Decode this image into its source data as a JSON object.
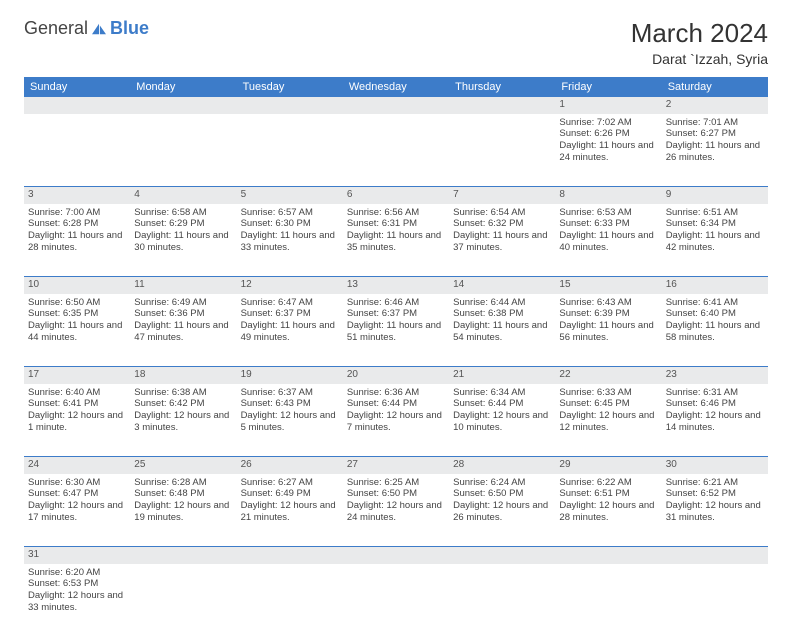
{
  "brand": {
    "part1": "General",
    "part2": "Blue"
  },
  "title": "March 2024",
  "location": "Darat `Izzah, Syria",
  "colors": {
    "header_bg": "#3d7cc9",
    "header_text": "#ffffff",
    "daynum_bg": "#e9eaeb",
    "border": "#3d7cc9",
    "text": "#444444",
    "background": "#ffffff"
  },
  "layout": {
    "cell_font_size": 9.5,
    "header_font_size": 11,
    "title_font_size": 26,
    "location_font_size": 14
  },
  "days": [
    "Sunday",
    "Monday",
    "Tuesday",
    "Wednesday",
    "Thursday",
    "Friday",
    "Saturday"
  ],
  "weeks": [
    [
      null,
      null,
      null,
      null,
      null,
      {
        "n": "1",
        "sr": "Sunrise: 7:02 AM",
        "ss": "Sunset: 6:26 PM",
        "dl": "Daylight: 11 hours and 24 minutes."
      },
      {
        "n": "2",
        "sr": "Sunrise: 7:01 AM",
        "ss": "Sunset: 6:27 PM",
        "dl": "Daylight: 11 hours and 26 minutes."
      }
    ],
    [
      {
        "n": "3",
        "sr": "Sunrise: 7:00 AM",
        "ss": "Sunset: 6:28 PM",
        "dl": "Daylight: 11 hours and 28 minutes."
      },
      {
        "n": "4",
        "sr": "Sunrise: 6:58 AM",
        "ss": "Sunset: 6:29 PM",
        "dl": "Daylight: 11 hours and 30 minutes."
      },
      {
        "n": "5",
        "sr": "Sunrise: 6:57 AM",
        "ss": "Sunset: 6:30 PM",
        "dl": "Daylight: 11 hours and 33 minutes."
      },
      {
        "n": "6",
        "sr": "Sunrise: 6:56 AM",
        "ss": "Sunset: 6:31 PM",
        "dl": "Daylight: 11 hours and 35 minutes."
      },
      {
        "n": "7",
        "sr": "Sunrise: 6:54 AM",
        "ss": "Sunset: 6:32 PM",
        "dl": "Daylight: 11 hours and 37 minutes."
      },
      {
        "n": "8",
        "sr": "Sunrise: 6:53 AM",
        "ss": "Sunset: 6:33 PM",
        "dl": "Daylight: 11 hours and 40 minutes."
      },
      {
        "n": "9",
        "sr": "Sunrise: 6:51 AM",
        "ss": "Sunset: 6:34 PM",
        "dl": "Daylight: 11 hours and 42 minutes."
      }
    ],
    [
      {
        "n": "10",
        "sr": "Sunrise: 6:50 AM",
        "ss": "Sunset: 6:35 PM",
        "dl": "Daylight: 11 hours and 44 minutes."
      },
      {
        "n": "11",
        "sr": "Sunrise: 6:49 AM",
        "ss": "Sunset: 6:36 PM",
        "dl": "Daylight: 11 hours and 47 minutes."
      },
      {
        "n": "12",
        "sr": "Sunrise: 6:47 AM",
        "ss": "Sunset: 6:37 PM",
        "dl": "Daylight: 11 hours and 49 minutes."
      },
      {
        "n": "13",
        "sr": "Sunrise: 6:46 AM",
        "ss": "Sunset: 6:37 PM",
        "dl": "Daylight: 11 hours and 51 minutes."
      },
      {
        "n": "14",
        "sr": "Sunrise: 6:44 AM",
        "ss": "Sunset: 6:38 PM",
        "dl": "Daylight: 11 hours and 54 minutes."
      },
      {
        "n": "15",
        "sr": "Sunrise: 6:43 AM",
        "ss": "Sunset: 6:39 PM",
        "dl": "Daylight: 11 hours and 56 minutes."
      },
      {
        "n": "16",
        "sr": "Sunrise: 6:41 AM",
        "ss": "Sunset: 6:40 PM",
        "dl": "Daylight: 11 hours and 58 minutes."
      }
    ],
    [
      {
        "n": "17",
        "sr": "Sunrise: 6:40 AM",
        "ss": "Sunset: 6:41 PM",
        "dl": "Daylight: 12 hours and 1 minute."
      },
      {
        "n": "18",
        "sr": "Sunrise: 6:38 AM",
        "ss": "Sunset: 6:42 PM",
        "dl": "Daylight: 12 hours and 3 minutes."
      },
      {
        "n": "19",
        "sr": "Sunrise: 6:37 AM",
        "ss": "Sunset: 6:43 PM",
        "dl": "Daylight: 12 hours and 5 minutes."
      },
      {
        "n": "20",
        "sr": "Sunrise: 6:36 AM",
        "ss": "Sunset: 6:44 PM",
        "dl": "Daylight: 12 hours and 7 minutes."
      },
      {
        "n": "21",
        "sr": "Sunrise: 6:34 AM",
        "ss": "Sunset: 6:44 PM",
        "dl": "Daylight: 12 hours and 10 minutes."
      },
      {
        "n": "22",
        "sr": "Sunrise: 6:33 AM",
        "ss": "Sunset: 6:45 PM",
        "dl": "Daylight: 12 hours and 12 minutes."
      },
      {
        "n": "23",
        "sr": "Sunrise: 6:31 AM",
        "ss": "Sunset: 6:46 PM",
        "dl": "Daylight: 12 hours and 14 minutes."
      }
    ],
    [
      {
        "n": "24",
        "sr": "Sunrise: 6:30 AM",
        "ss": "Sunset: 6:47 PM",
        "dl": "Daylight: 12 hours and 17 minutes."
      },
      {
        "n": "25",
        "sr": "Sunrise: 6:28 AM",
        "ss": "Sunset: 6:48 PM",
        "dl": "Daylight: 12 hours and 19 minutes."
      },
      {
        "n": "26",
        "sr": "Sunrise: 6:27 AM",
        "ss": "Sunset: 6:49 PM",
        "dl": "Daylight: 12 hours and 21 minutes."
      },
      {
        "n": "27",
        "sr": "Sunrise: 6:25 AM",
        "ss": "Sunset: 6:50 PM",
        "dl": "Daylight: 12 hours and 24 minutes."
      },
      {
        "n": "28",
        "sr": "Sunrise: 6:24 AM",
        "ss": "Sunset: 6:50 PM",
        "dl": "Daylight: 12 hours and 26 minutes."
      },
      {
        "n": "29",
        "sr": "Sunrise: 6:22 AM",
        "ss": "Sunset: 6:51 PM",
        "dl": "Daylight: 12 hours and 28 minutes."
      },
      {
        "n": "30",
        "sr": "Sunrise: 6:21 AM",
        "ss": "Sunset: 6:52 PM",
        "dl": "Daylight: 12 hours and 31 minutes."
      }
    ],
    [
      {
        "n": "31",
        "sr": "Sunrise: 6:20 AM",
        "ss": "Sunset: 6:53 PM",
        "dl": "Daylight: 12 hours and 33 minutes."
      },
      null,
      null,
      null,
      null,
      null,
      null
    ]
  ]
}
